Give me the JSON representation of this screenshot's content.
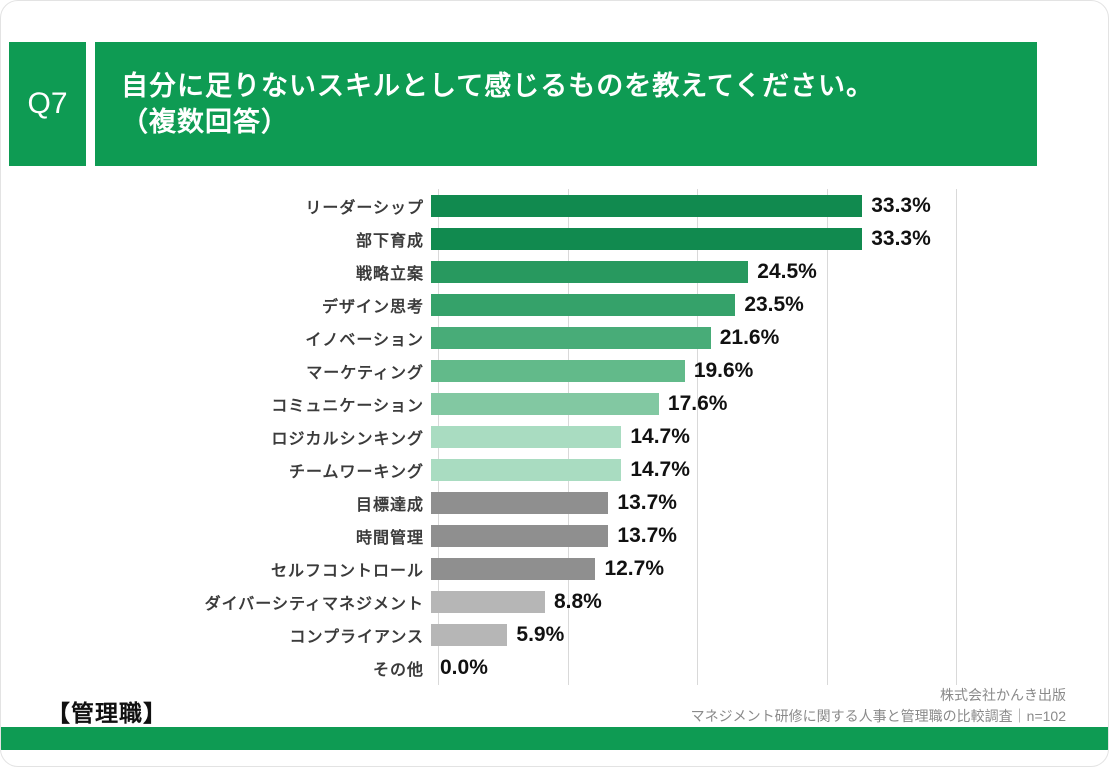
{
  "header": {
    "q_label": "Q7",
    "title_line1": "自分に足りないスキルとして感じるものを教えてください。",
    "title_line2": "（複数回答）"
  },
  "chart_data": {
    "type": "bar",
    "orientation": "horizontal",
    "title": "自分に足りないスキルとして感じるものを教えてください。（複数回答）",
    "xlabel": "",
    "ylabel": "",
    "xlim": [
      0,
      40
    ],
    "gridlines": [
      0,
      10,
      20,
      30,
      40
    ],
    "grid": true,
    "categories": [
      "リーダーシップ",
      "部下育成",
      "戦略立案",
      "デザイン思考",
      "イノベーション",
      "マーケティング",
      "コミュニケーション",
      "ロジカルシンキング",
      "チームワーキング",
      "目標達成",
      "時間管理",
      "セルフコントロール",
      "ダイバーシティマネジメント",
      "コンプライアンス",
      "その他"
    ],
    "values": [
      33.3,
      33.3,
      24.5,
      23.5,
      21.6,
      19.6,
      17.6,
      14.7,
      14.7,
      13.7,
      13.7,
      12.7,
      8.8,
      5.9,
      0.0
    ],
    "labels": [
      "33.3%",
      "33.3%",
      "24.5%",
      "23.5%",
      "21.6%",
      "19.6%",
      "17.6%",
      "14.7%",
      "14.7%",
      "13.7%",
      "13.7%",
      "12.7%",
      "8.8%",
      "5.9%",
      "0.0%"
    ],
    "bar_colors": [
      "#118a4f",
      "#118a4f",
      "#28995f",
      "#35a26a",
      "#48ac78",
      "#62ba8a",
      "#82c8a2",
      "#a9dcc1",
      "#a9dcc1",
      "#8f8f8f",
      "#8f8f8f",
      "#8f8f8f",
      "#b6b6b6",
      "#b6b6b6",
      "#b6b6b6"
    ]
  },
  "footer": {
    "group_label": "【管理職】",
    "source_line1": "株式会社かんき出版",
    "source_line2": "マネジメント研修に関する人事と管理職の比較調査｜n=102"
  },
  "colors": {
    "accent_green": "#0e9b53",
    "gridline": "#d9d9d9",
    "text_dark": "#111111",
    "text_gray": "#8a8a8a"
  }
}
